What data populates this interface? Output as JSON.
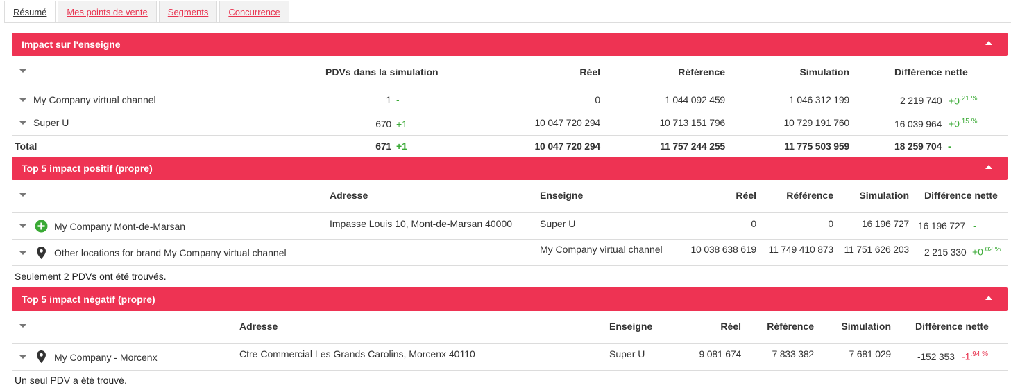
{
  "tabs": [
    "Résumé",
    "Mes points de vente",
    "Segments",
    "Concurrence"
  ],
  "colors": {
    "accent": "#ee3353",
    "positive": "#3aaa35",
    "negative": "#e8334f"
  },
  "impact": {
    "title": "Impact sur l'enseigne",
    "headers": {
      "pdvs": "PDVs dans la simulation",
      "reel": "Réel",
      "reference": "Référence",
      "simulation": "Simulation",
      "diff": "Différence nette"
    },
    "rows": [
      {
        "name": "My Company virtual channel",
        "pdvs": "1",
        "pdvs_delta": "-",
        "reel": "0",
        "reference": "1 044 092 459",
        "simulation": "1 046 312 199",
        "diff": "2 219 740",
        "diff_pct_prefix": "+0",
        "diff_pct_sup": ".21 %"
      },
      {
        "name": "Super U",
        "pdvs": "670",
        "pdvs_delta": "+1",
        "reel": "10 047 720 294",
        "reference": "10 713 151 796",
        "simulation": "10 729 191 760",
        "diff": "16 039 964",
        "diff_pct_prefix": "+0",
        "diff_pct_sup": ".15 %"
      }
    ],
    "total": {
      "label": "Total",
      "pdvs": "671",
      "pdvs_delta": "+1",
      "reel": "10 047 720 294",
      "reference": "11 757 244 255",
      "simulation": "11 775 503 959",
      "diff": "18 259 704",
      "diff_delta": "-"
    }
  },
  "top_pos": {
    "title": "Top 5 impact positif (propre)",
    "headers": {
      "adresse": "Adresse",
      "enseigne": "Enseigne",
      "reel": "Réel",
      "reference": "Référence",
      "simulation": "Simulation",
      "diff": "Différence nette"
    },
    "rows": [
      {
        "icon": "plus-circle-icon",
        "name": "My Company Mont-de-Marsan",
        "adresse": "Impasse Louis 10, Mont-de-Marsan 40000",
        "enseigne": "Super U",
        "reel": "0",
        "reference": "0",
        "simulation": "16 196 727",
        "diff": "16 196 727",
        "diff_delta": "-"
      },
      {
        "icon": "map-pin-icon",
        "name": "Other locations for brand My Company virtual channel",
        "adresse": "",
        "enseigne": "My Company virtual channel",
        "reel": "10 038 638 619",
        "reference": "11 749 410 873",
        "simulation": "11 751 626 203",
        "diff": "2 215 330",
        "diff_pct_prefix": "+0",
        "diff_pct_sup": ".02 %"
      }
    ],
    "note": "Seulement 2 PDVs ont été trouvés."
  },
  "top_neg": {
    "title": "Top 5 impact négatif (propre)",
    "headers": {
      "adresse": "Adresse",
      "enseigne": "Enseigne",
      "reel": "Réel",
      "reference": "Référence",
      "simulation": "Simulation",
      "diff": "Différence nette"
    },
    "rows": [
      {
        "icon": "map-pin-icon",
        "name": "My Company - Morcenx",
        "adresse": "Ctre Commercial Les Grands Carolins, Morcenx 40110",
        "enseigne": "Super U",
        "reel": "9 081 674",
        "reference": "7 833 382",
        "simulation": "7 681 029",
        "diff": "-152 353",
        "diff_pct_prefix": "-1",
        "diff_pct_sup": ".94 %"
      }
    ],
    "note": "Un seul PDV a été trouvé."
  }
}
